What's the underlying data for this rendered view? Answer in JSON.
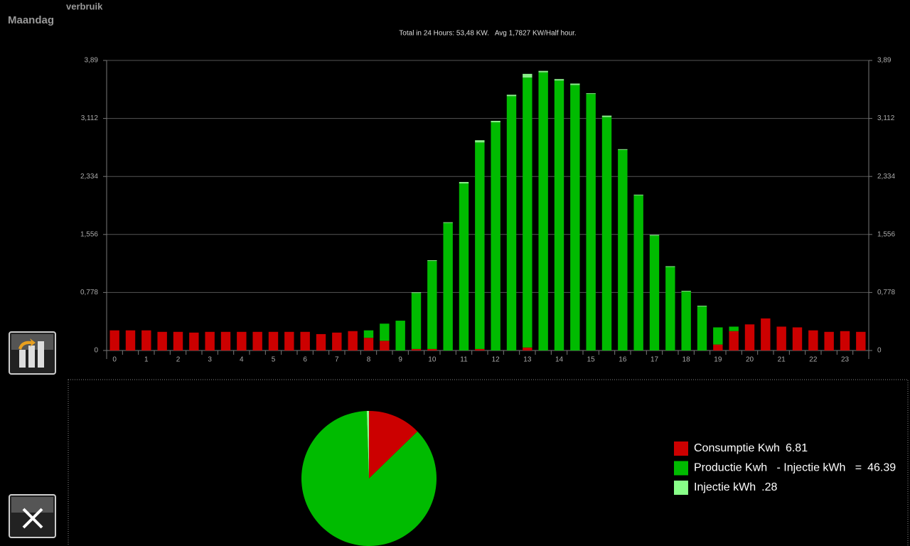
{
  "header": {
    "day": "Maandag",
    "section": "verbruik"
  },
  "chart_data": [
    {
      "type": "bar",
      "stacked": true,
      "title": "Total in 24 Hours: 53,48 KW.   Avg 1,7827 KW/Half hour.",
      "categories": [
        "0",
        null,
        "1",
        null,
        "2",
        null,
        "3",
        null,
        "4",
        null,
        "5",
        null,
        "6",
        null,
        "7",
        null,
        "8",
        null,
        "9",
        null,
        "10",
        null,
        "11",
        null,
        "12",
        null,
        "13",
        null,
        "14",
        null,
        "15",
        null,
        "16",
        null,
        "17",
        null,
        "18",
        null,
        "19",
        null,
        "20",
        null,
        "21",
        null,
        "22",
        null,
        "23",
        null
      ],
      "series": [
        {
          "color": "#cc0000",
          "values": [
            0.27,
            0.27,
            0.27,
            0.25,
            0.25,
            0.24,
            0.25,
            0.25,
            0.25,
            0.25,
            0.25,
            0.25,
            0.25,
            0.22,
            0.24,
            0.26,
            0.17,
            0.13,
            0,
            0.02,
            0.02,
            0,
            0,
            0.02,
            0,
            0,
            0.04,
            0,
            0,
            0,
            0,
            0,
            0,
            0,
            0,
            0,
            0,
            0,
            0.08,
            0.26,
            0.35,
            0.43,
            0.32,
            0.31,
            0.27,
            0.25,
            0.26,
            0.25
          ]
        },
        {
          "color": "#00bb00",
          "values": [
            0,
            0,
            0,
            0,
            0,
            0,
            0,
            0,
            0,
            0,
            0,
            0,
            0,
            0,
            0,
            0,
            0.1,
            0.23,
            0.4,
            0.75,
            1.18,
            1.71,
            2.24,
            2.77,
            3.06,
            3.41,
            3.62,
            3.73,
            3.62,
            3.56,
            3.44,
            3.13,
            2.69,
            2.08,
            1.54,
            1.12,
            0.79,
            0.59,
            0.23,
            0.06,
            0,
            0,
            0,
            0,
            0,
            0,
            0,
            0
          ]
        },
        {
          "color": "#88ee88",
          "values": [
            0,
            0,
            0,
            0,
            0,
            0,
            0,
            0,
            0,
            0,
            0,
            0,
            0,
            0,
            0,
            0,
            0,
            0,
            0,
            0.01,
            0.01,
            0.01,
            0.02,
            0.03,
            0.02,
            0.02,
            0.05,
            0.02,
            0.02,
            0.02,
            0.01,
            0.02,
            0.01,
            0.01,
            0.01,
            0.01,
            0.01,
            0.01,
            0,
            0,
            0,
            0,
            0,
            0,
            0,
            0,
            0,
            0
          ]
        }
      ],
      "ylim": [
        0,
        3.89
      ],
      "yticks": [
        0,
        {
          "value": 0.778,
          "label": "0,778"
        },
        {
          "value": 1.556,
          "label": "1,556"
        },
        {
          "value": 2.334,
          "label": "2,334"
        },
        {
          "value": 3.112,
          "label": "3,112"
        },
        {
          "value": 3.89,
          "label": "3,89"
        }
      ],
      "grid": true
    },
    {
      "type": "pie",
      "categories": [
        "Consumptie Kwh",
        "Productie Kwh   - Injectie kWh   =",
        "Injectie kWh"
      ],
      "values": [
        6.81,
        46.39,
        0.28
      ],
      "value_labels": [
        "6.81",
        "46.39",
        ".28"
      ],
      "colors": [
        "#cc0000",
        "#00bb00",
        "#88ff88"
      ]
    }
  ]
}
